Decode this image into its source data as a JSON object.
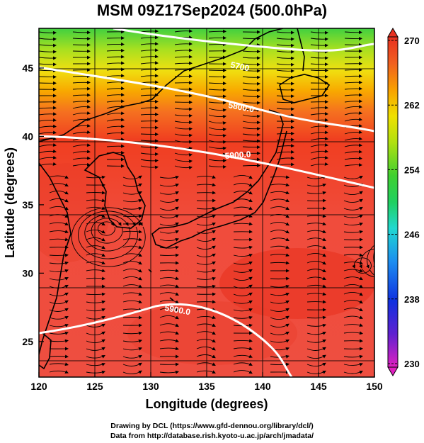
{
  "title": "MSM 09Z17Sep2024 (500.0hPa)",
  "xaxis": {
    "label": "Longitude (degrees)",
    "ticks": [
      "120",
      "125",
      "130",
      "135",
      "140",
      "145",
      "150"
    ]
  },
  "yaxis": {
    "label": "Latitude  (degrees)",
    "ticks": [
      "25",
      "30",
      "35",
      "40",
      "45"
    ]
  },
  "colorbar": {
    "ticks": [
      "270",
      "262",
      "254",
      "246",
      "238",
      "230"
    ],
    "range": [
      230,
      270
    ],
    "colors": [
      "#e020c0",
      "#5020d0",
      "#1040e0",
      "#20a0f0",
      "#20e0c0",
      "#30d040",
      "#a0e010",
      "#f0e000",
      "#f8a000",
      "#f06020",
      "#e83020"
    ]
  },
  "contours": {
    "label_5800": "5800.0",
    "label_5900_north": "5900.0",
    "label_5900_south": "5900.0",
    "label_5700": "5700"
  },
  "credits": {
    "line1": "Drawing by DCL (https://www.gfd-dennou.org/library/dcl/)",
    "line2": "Data from http://database.rish.kyoto-u.ac.jp/arch/jmadata/"
  }
}
